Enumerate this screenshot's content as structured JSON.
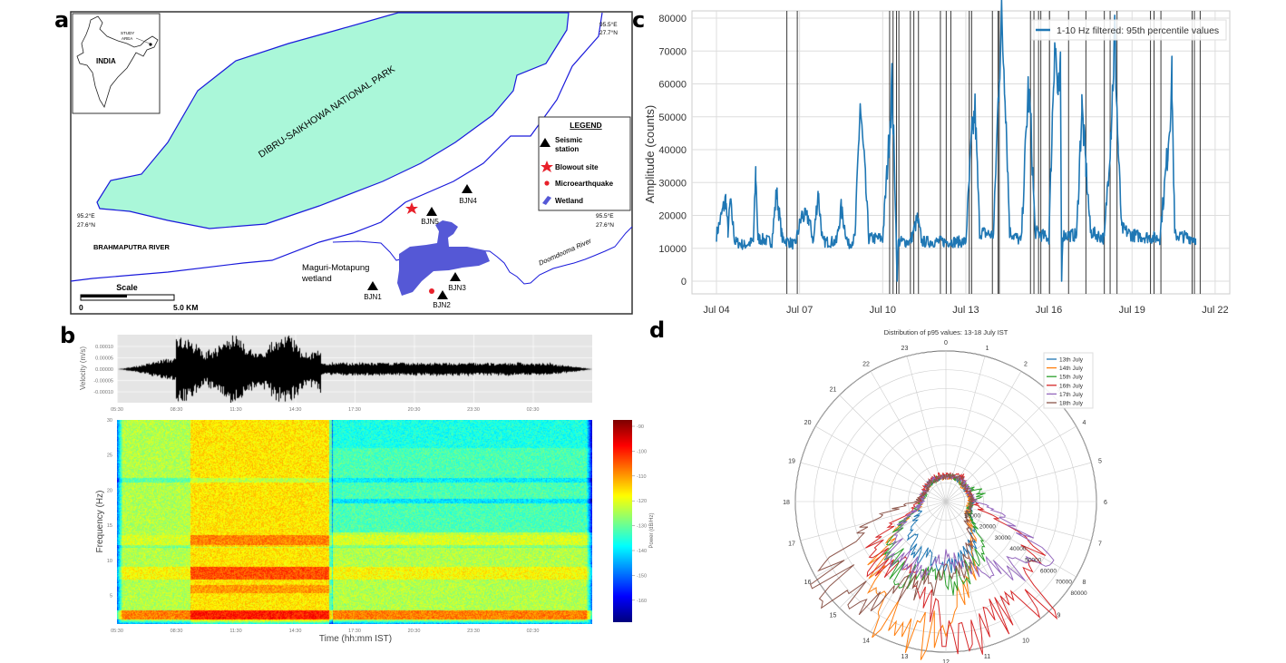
{
  "panel_labels": {
    "a": "a",
    "b": "b",
    "c": "c",
    "d": "d"
  },
  "map": {
    "inset": {
      "country": "INDIA",
      "study_area_1": "STUDY",
      "study_area_2": "AREA"
    },
    "park_label": "DIBRU-SAIKHOWA NATIONAL PARK",
    "river_label": "BRAHMAPUTRA RIVER",
    "wetland_label_1": "Maguri-Motapung",
    "wetland_label_2": "wetland",
    "doomdooma_label": "Doomdooma River",
    "coords": {
      "tr_lon": "95.5°E",
      "tr_lat": "27.7°N",
      "ml_lon": "95.2°E",
      "ml_lat": "27.6°N",
      "mr_lon": "95.5°E",
      "mr_lat": "27.6°N"
    },
    "stations": [
      "BJN1",
      "BJN2",
      "BJN3",
      "BJN4",
      "BJN5"
    ],
    "scale": {
      "title": "Scale",
      "start": "0",
      "end": "5.0 KM"
    },
    "legend": {
      "title": "LEGEND",
      "seismic_1": "Seismic",
      "seismic_2": "station",
      "blowout": "Blowout site",
      "microearthquake": "Microearthquake",
      "wetland": "Wetland"
    },
    "colors": {
      "park": "#aaf7d9",
      "river_line": "#1a1adb",
      "wetland": "#5558d6",
      "blowout": "#e8202a",
      "quake": "#e8202a"
    }
  },
  "chart_data": [
    {
      "id": "c",
      "type": "line",
      "ylabel": "Amplitude (counts)",
      "xlabel": "",
      "ylim": [
        0,
        80000
      ],
      "yticks": [
        "0",
        "10000",
        "20000",
        "30000",
        "40000",
        "50000",
        "60000",
        "70000",
        "80000"
      ],
      "xticks": [
        "Jul 04",
        "Jul 07",
        "Jul 10",
        "Jul 13",
        "Jul 16",
        "Jul 19",
        "Jul 22"
      ],
      "grid": true,
      "legend_placement": "top-right",
      "series": [
        {
          "name": "1-10 Hz filtered: 95th percentile values",
          "color": "#1f77b4",
          "points": [
            [
              "Jul 04 00:00",
              14000
            ],
            [
              "Jul 04 08:00",
              25000
            ],
            [
              "Jul 04 10:00",
              15000
            ],
            [
              "Jul 04 12:00",
              24000
            ],
            [
              "Jul 04 16:00",
              12000
            ],
            [
              "Jul 05 00:00",
              11000
            ],
            [
              "Jul 05 08:00",
              12000
            ],
            [
              "Jul 05 10:00",
              33000
            ],
            [
              "Jul 05 12:00",
              13000
            ],
            [
              "Jul 06 00:00",
              12000
            ],
            [
              "Jul 06 04:00",
              27000
            ],
            [
              "Jul 06 09:00",
              13000
            ],
            [
              "Jul 06 20:00",
              11000
            ],
            [
              "Jul 07 02:00",
              20000
            ],
            [
              "Jul 07 08:00",
              19000
            ],
            [
              "Jul 07 12:00",
              12000
            ],
            [
              "Jul 07 16:00",
              27000
            ],
            [
              "Jul 07 20:00",
              12000
            ],
            [
              "Jul 08 08:00",
              12000
            ],
            [
              "Jul 08 12:00",
              22000
            ],
            [
              "Jul 08 18:00",
              11000
            ],
            [
              "Jul 09 00:00",
              13000
            ],
            [
              "Jul 09 04:30",
              54000
            ],
            [
              "Jul 09 06:00",
              45000
            ],
            [
              "Jul 09 08:00",
              36000
            ],
            [
              "Jul 09 12:00",
              13000
            ],
            [
              "Jul 10 00:00",
              13000
            ],
            [
              "Jul 10 05:00",
              40000
            ],
            [
              "Jul 10 08:00",
              60000
            ],
            [
              "Jul 10 11:00",
              25000
            ],
            [
              "Jul 10 12:30",
              0
            ],
            [
              "Jul 10 13:30",
              12000
            ],
            [
              "Jul 11 00:00",
              12000
            ],
            [
              "Jul 11 06:00",
              19000
            ],
            [
              "Jul 11 10:00",
              12000
            ],
            [
              "Jul 12 00:00",
              12000
            ],
            [
              "Jul 12 12:00",
              12000
            ],
            [
              "Jul 13 00:00",
              12000
            ],
            [
              "Jul 13 05:00",
              43000
            ],
            [
              "Jul 13 08:00",
              52000
            ],
            [
              "Jul 13 12:00",
              15000
            ],
            [
              "Jul 14 00:00",
              14000
            ],
            [
              "Jul 14 05:00",
              65000
            ],
            [
              "Jul 14 07:00",
              78000
            ],
            [
              "Jul 14 10:00",
              60000
            ],
            [
              "Jul 14 14:00",
              15000
            ],
            [
              "Jul 15 00:00",
              12000
            ],
            [
              "Jul 15 06:00",
              58000
            ],
            [
              "Jul 15 08:00",
              50000
            ],
            [
              "Jul 15 12:00",
              15000
            ],
            [
              "Jul 16 00:00",
              13000
            ],
            [
              "Jul 16 04:00",
              62000
            ],
            [
              "Jul 16 05:00",
              75000
            ],
            [
              "Jul 16 08:00",
              55000
            ],
            [
              "Jul 16 10:00",
              62000
            ],
            [
              "Jul 16 11:00",
              0
            ],
            [
              "Jul 16 12:00",
              14000
            ],
            [
              "Jul 17 00:00",
              14000
            ],
            [
              "Jul 17 04:30",
              53000
            ],
            [
              "Jul 17 08:00",
              35000
            ],
            [
              "Jul 17 12:00",
              15000
            ],
            [
              "Jul 18 00:00",
              13000
            ],
            [
              "Jul 18 06:00",
              48000
            ],
            [
              "Jul 18 09:00",
              76000
            ],
            [
              "Jul 18 12:00",
              40000
            ],
            [
              "Jul 18 15:00",
              16000
            ],
            [
              "Jul 19 00:00",
              14000
            ],
            [
              "Jul 20 00:00",
              13000
            ],
            [
              "Jul 20 07:00",
              40000
            ],
            [
              "Jul 20 10:30",
              61000
            ],
            [
              "Jul 20 13:00",
              14000
            ],
            [
              "Jul 21 07:00",
              13000
            ]
          ]
        }
      ],
      "vertical_markers": [
        "Jul 06 13:00",
        "Jul 06 22:00",
        "Jul 10 06:00",
        "Jul 10 09:00",
        "Jul 10 12:00",
        "Jul 10 14:00",
        "Jul 11 00:00",
        "Jul 11 03:00",
        "Jul 11 07:00",
        "Jul 12 02:00",
        "Jul 12 07:00",
        "Jul 12 11:00",
        "Jul 13 03:00",
        "Jul 13 05:00",
        "Jul 13 23:00",
        "Jul 14 04:00",
        "Jul 14 05:00",
        "Jul 15 08:00",
        "Jul 15 11:00",
        "Jul 15 15:00",
        "Jul 15 17:00",
        "Jul 16 00:30",
        "Jul 16 17:00",
        "Jul 17 08:00",
        "Jul 18 00:00",
        "Jul 18 05:00",
        "Jul 18 11:00",
        "Jul 19 16:00",
        "Jul 19 19:00",
        "Jul 20 01:00",
        "Jul 21 04:00",
        "Jul 21 06:00",
        "Jul 21 11:00"
      ]
    },
    {
      "id": "b-waveform",
      "type": "line",
      "ylabel": "Velocity (m/s)",
      "yticks": [
        "0.00010",
        "0.00005",
        "0.00000",
        "-0.00005",
        "-0.00010"
      ],
      "xticks": [
        "05:30",
        "08:30",
        "11:30",
        "14:30",
        "17:30",
        "20:30",
        "23:30",
        "02:30"
      ],
      "ylim": [
        -0.00014,
        0.00014
      ],
      "color": "#000000",
      "background": "#e5e5e5"
    },
    {
      "id": "b-spectrogram",
      "type": "heatmap",
      "ylabel": "Frequency (Hz)",
      "xlabel": "Time (hh:mm IST)",
      "yticks": [
        "30",
        "25",
        "20",
        "15",
        "10",
        "5"
      ],
      "xticks": [
        "05:30",
        "08:30",
        "11:30",
        "14:30",
        "17:30",
        "20:30",
        "23:30",
        "02:30"
      ],
      "colorbar_label": "Power (dB/Hz)",
      "colorbar_ticks": [
        "-90",
        "-100",
        "-110",
        "-120",
        "-130",
        "-140",
        "-150",
        "-160"
      ],
      "colormap": "jet",
      "zlim": [
        -168,
        -88
      ]
    },
    {
      "id": "d",
      "type": "line",
      "polar": true,
      "title": "Distribution of p95 values: 13-18 July IST",
      "angular_ticks": [
        "0",
        "1",
        "2",
        "3",
        "4",
        "5",
        "6",
        "7",
        "8",
        "9",
        "10",
        "11",
        "12",
        "13",
        "14",
        "15",
        "16",
        "17",
        "18",
        "19",
        "20",
        "21",
        "22",
        "23"
      ],
      "radial_ticks": [
        "10000",
        "20000",
        "30000",
        "40000",
        "50000",
        "60000",
        "70000",
        "80000"
      ],
      "rlim": [
        0,
        80000
      ],
      "legend_placement": "top-right",
      "series": [
        {
          "name": "13th July",
          "color": "#1f77b4",
          "hourly": [
            13000,
            13500,
            13000,
            12000,
            12000,
            13000,
            14000,
            13000,
            15000,
            20000,
            28000,
            32000,
            35000,
            30000,
            33000,
            25000,
            18000,
            14000,
            13000,
            12000,
            12500,
            13000,
            13000,
            13000
          ]
        },
        {
          "name": "14th July",
          "color": "#ff7f0e",
          "hourly": [
            13000,
            13000,
            13000,
            12000,
            12500,
            13000,
            13000,
            12000,
            13000,
            18000,
            30000,
            45000,
            65000,
            78000,
            70000,
            55000,
            30000,
            15000,
            13000,
            12000,
            12000,
            12500,
            13000,
            13000
          ]
        },
        {
          "name": "15th July",
          "color": "#2ca02c",
          "hourly": [
            13000,
            14000,
            13000,
            13000,
            14000,
            20000,
            14000,
            13000,
            14000,
            25000,
            35000,
            40000,
            45000,
            42000,
            45000,
            40000,
            30000,
            16000,
            13000,
            12000,
            12000,
            13000,
            13000,
            13000
          ]
        },
        {
          "name": "16th July",
          "color": "#d62728",
          "hourly": [
            14000,
            14000,
            16000,
            14000,
            13000,
            13000,
            15000,
            20000,
            55000,
            72000,
            65000,
            75000,
            70000,
            45000,
            35000,
            50000,
            42000,
            20000,
            14000,
            13000,
            13000,
            14000,
            14000,
            14000
          ]
        },
        {
          "name": "17th July",
          "color": "#9467bd",
          "hourly": [
            13000,
            13000,
            14000,
            14000,
            13000,
            14000,
            15000,
            30000,
            60000,
            50000,
            40000,
            35000,
            30000,
            35000,
            40000,
            38000,
            30000,
            16000,
            13000,
            13000,
            12000,
            13000,
            13000,
            13000
          ]
        },
        {
          "name": "18th July",
          "color": "#8c564b",
          "hourly": [
            13000,
            14000,
            15000,
            13000,
            14000,
            13000,
            14000,
            13000,
            13000,
            15000,
            25000,
            35000,
            40000,
            45000,
            55000,
            75000,
            70000,
            40000,
            15000,
            13000,
            12000,
            13000,
            13000,
            13000
          ]
        }
      ]
    }
  ]
}
